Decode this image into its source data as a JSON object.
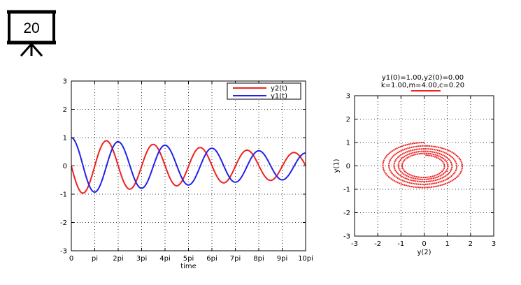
{
  "badge": {
    "number": "20",
    "icon": "presentation-board-icon"
  },
  "chart_data": [
    {
      "type": "line",
      "title": "",
      "xlabel": "time",
      "ylabel": "",
      "xlim": [
        0,
        31.4159
      ],
      "ylim": [
        -3,
        3
      ],
      "x_tick_labels": [
        "0",
        "pi",
        "2pi",
        "3pi",
        "4pi",
        "5pi",
        "6pi",
        "7pi",
        "8pi",
        "9pi",
        "10pi"
      ],
      "y_tick_labels": [
        "-3",
        "-2",
        "-1",
        "0",
        "1",
        "2",
        "3"
      ],
      "grid": true,
      "legend_position": "top-right",
      "series": [
        {
          "name": "y2(t)",
          "color": "#ee2222",
          "model": "-sin(0.9987 t) * exp(-0.025 t)"
        },
        {
          "name": "y1(t)",
          "color": "#2222ee",
          "model": "cos(0.9987 t) * exp(-0.025 t)"
        }
      ]
    },
    {
      "type": "line",
      "title_lines": [
        "y1(0)=1.00,y2(0)=0.00",
        "k=1.00,m=4.00,c=0.20"
      ],
      "xlabel": "y(2)",
      "ylabel": "y(1)",
      "xlim": [
        -3,
        3
      ],
      "ylim": [
        -3,
        3
      ],
      "x_tick_labels": [
        "-3",
        "-2",
        "-1",
        "0",
        "1",
        "2",
        "3"
      ],
      "y_tick_labels": [
        "-3",
        "-2",
        "-1",
        "0",
        "1",
        "2",
        "3"
      ],
      "grid": true,
      "series": [
        {
          "color": "#ee2222",
          "model": "phase portrait: x = y2(t), y = y1(t), t in [0, 10pi]"
        }
      ]
    }
  ]
}
